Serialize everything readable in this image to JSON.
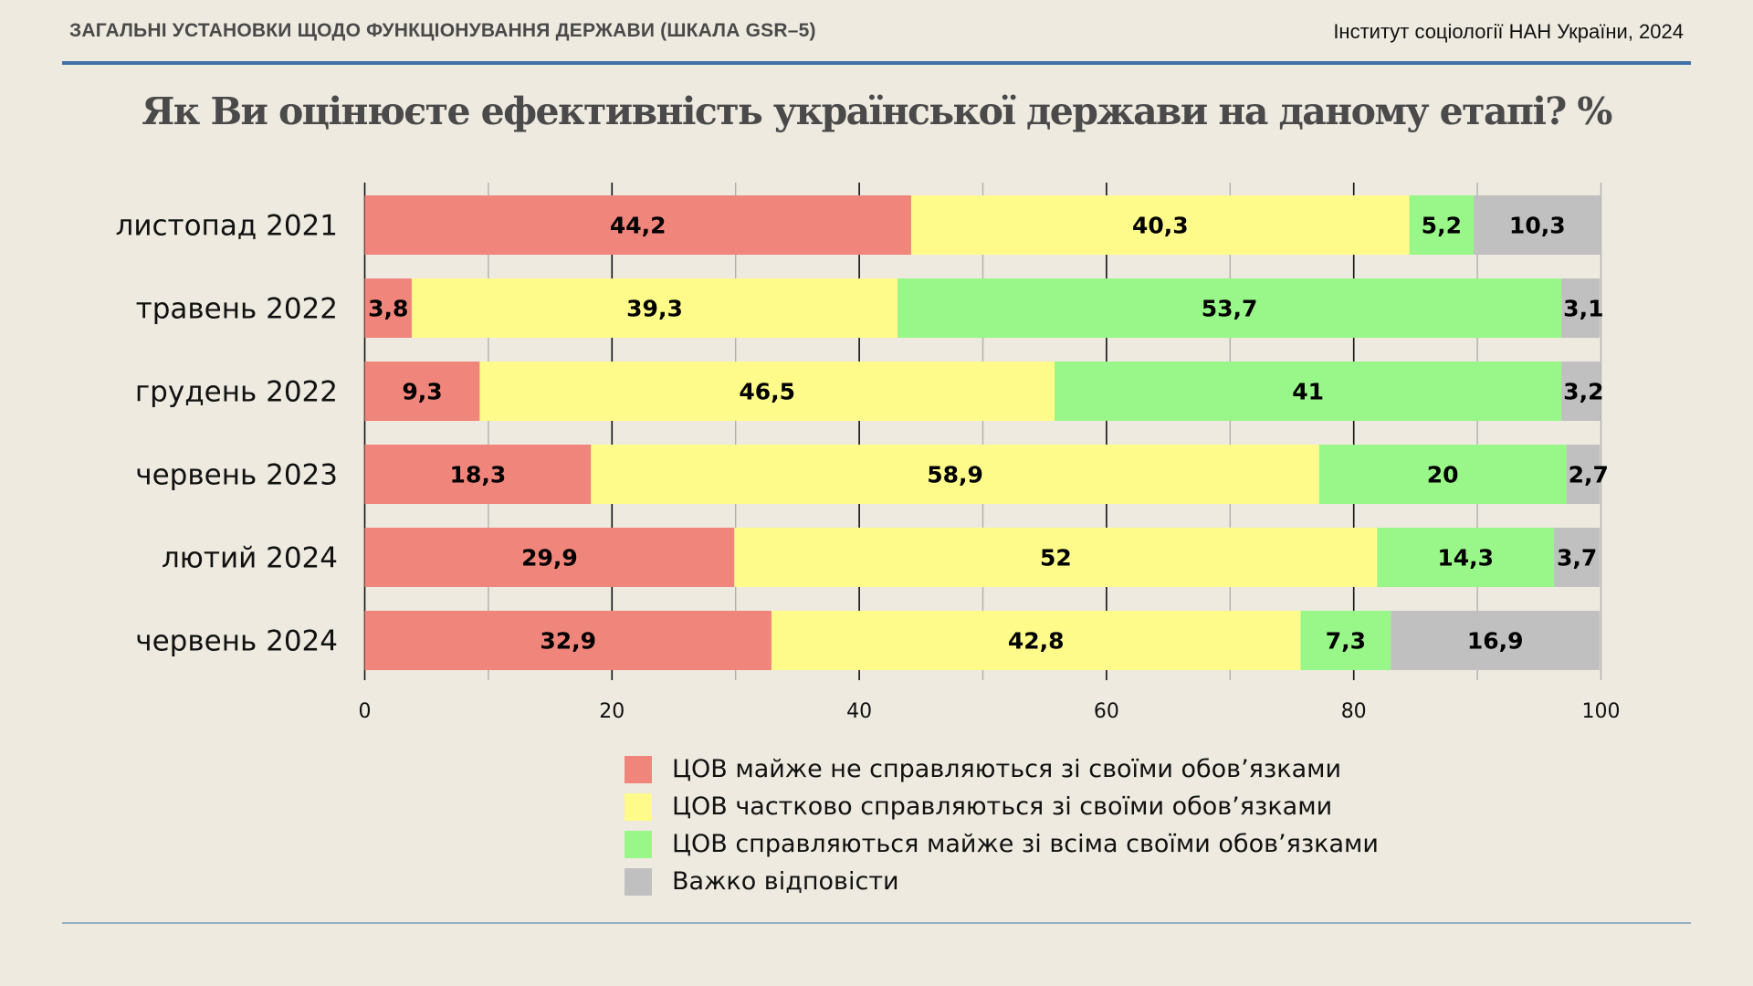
{
  "header": {
    "left": "ЗАГАЛЬНІ УСТАНОВКИ ЩОДО ФУНКЦІОНУВАННЯ ДЕРЖАВИ (ШКАЛА GSR–5)",
    "right": "Інститут соціології НАН України, 2024"
  },
  "colors": {
    "accent_rule": "#3E72A6",
    "background": "#EEEAE0"
  },
  "chart_data": {
    "type": "bar",
    "orientation": "horizontal",
    "stacked": true,
    "title": "Як Ви оцінюєте ефективність української держави на даному етапі? %",
    "xlabel": "",
    "ylabel": "",
    "xlim": [
      0,
      100
    ],
    "x_ticks": [
      0,
      20,
      40,
      60,
      80,
      100
    ],
    "grid": "vertical, every 10",
    "legend_position": "bottom-center",
    "categories": [
      "листопад 2021",
      "травень 2022",
      "грудень 2022",
      "червень 2023",
      "лютий 2024",
      "червень 2024"
    ],
    "series": [
      {
        "name": "ЦОВ майже не справляються зі своїми обов’язками",
        "color": "#F0857C",
        "values": [
          44.2,
          3.8,
          9.3,
          18.3,
          29.9,
          32.9
        ],
        "labels": [
          "44,2",
          "3,8",
          "9,3",
          "18,3",
          "29,9",
          "32,9"
        ]
      },
      {
        "name": "ЦОВ частково справляються зі своїми обов’язками",
        "color": "#FFFB8A",
        "values": [
          40.3,
          39.3,
          46.5,
          58.9,
          52,
          42.8
        ],
        "labels": [
          "40,3",
          "39,3",
          "46,5",
          "58,9",
          "52",
          "42,8"
        ]
      },
      {
        "name": "ЦОВ справляються майже зі всіма своїми обов’язками",
        "color": "#98F788",
        "values": [
          5.2,
          53.7,
          41,
          20,
          14.3,
          7.3
        ],
        "labels": [
          "5,2",
          "53,7",
          "41",
          "20",
          "14,3",
          "7,3"
        ]
      },
      {
        "name": "Важко відповісти",
        "color": "#C0C0C0",
        "values": [
          10.3,
          3.1,
          3.2,
          2.7,
          3.7,
          16.9
        ],
        "labels": [
          "10,3",
          "3,1",
          "3,2",
          "2,7",
          "3,7",
          "16,9"
        ]
      }
    ]
  }
}
